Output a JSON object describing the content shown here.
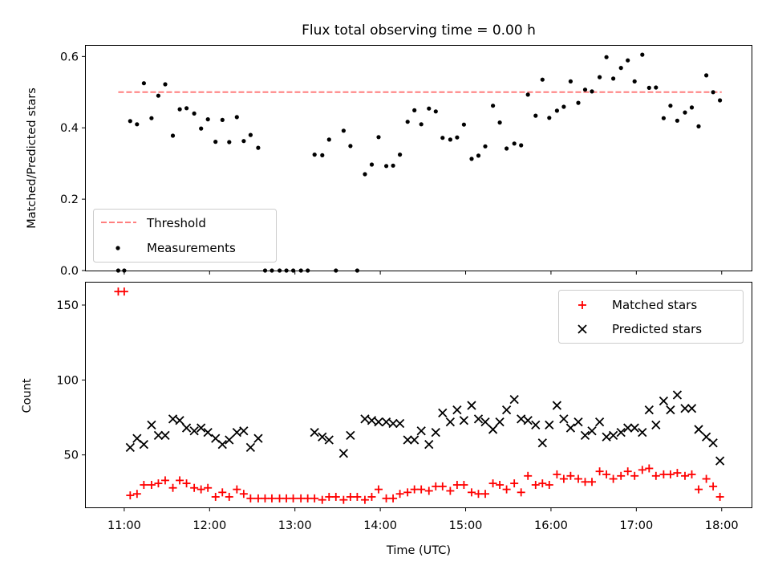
{
  "chart_data": [
    {
      "type": "scatter",
      "title": "Flux total observing time = 0.00 h",
      "xlabel": "",
      "ylabel": "Matched/Predicted stars",
      "xlim_hours": [
        10.55,
        18.35
      ],
      "ylim": [
        0,
        0.63
      ],
      "yticks": [
        0.0,
        0.2,
        0.4,
        0.6
      ],
      "ytick_labels": [
        "0.0",
        "0.2",
        "0.4",
        "0.6"
      ],
      "grid": false,
      "legend": {
        "position": "lower-left",
        "entries": [
          "Threshold",
          "Measurements"
        ]
      },
      "threshold": {
        "name": "Threshold",
        "value": 0.5,
        "x_range": [
          10.93,
          18.0
        ],
        "color": "#ff7f7f"
      },
      "series": [
        {
          "name": "Measurements",
          "marker": "dot",
          "color": "#000000",
          "points": [
            [
              10.93,
              0.0
            ],
            [
              11.0,
              0.0
            ],
            [
              11.07,
              0.419
            ],
            [
              11.15,
              0.41
            ],
            [
              11.23,
              0.525
            ],
            [
              11.32,
              0.427
            ],
            [
              11.4,
              0.49
            ],
            [
              11.48,
              0.522
            ],
            [
              11.57,
              0.378
            ],
            [
              11.65,
              0.452
            ],
            [
              11.73,
              0.455
            ],
            [
              11.82,
              0.44
            ],
            [
              11.9,
              0.398
            ],
            [
              11.98,
              0.424
            ],
            [
              12.07,
              0.361
            ],
            [
              12.15,
              0.422
            ],
            [
              12.23,
              0.36
            ],
            [
              12.32,
              0.43
            ],
            [
              12.4,
              0.363
            ],
            [
              12.48,
              0.38
            ],
            [
              12.57,
              0.344
            ],
            [
              12.65,
              0.0
            ],
            [
              12.73,
              0.0
            ],
            [
              12.82,
              0.0
            ],
            [
              12.9,
              0.0
            ],
            [
              12.98,
              0.0
            ],
            [
              13.07,
              0.0
            ],
            [
              13.15,
              0.0
            ],
            [
              13.23,
              0.325
            ],
            [
              13.32,
              0.323
            ],
            [
              13.4,
              0.367
            ],
            [
              13.48,
              0.0
            ],
            [
              13.57,
              0.392
            ],
            [
              13.65,
              0.349
            ],
            [
              13.73,
              0.0
            ],
            [
              13.82,
              0.27
            ],
            [
              13.9,
              0.297
            ],
            [
              13.98,
              0.374
            ],
            [
              14.07,
              0.293
            ],
            [
              14.15,
              0.294
            ],
            [
              14.23,
              0.325
            ],
            [
              14.32,
              0.417
            ],
            [
              14.4,
              0.449
            ],
            [
              14.48,
              0.41
            ],
            [
              14.57,
              0.454
            ],
            [
              14.65,
              0.446
            ],
            [
              14.73,
              0.372
            ],
            [
              14.82,
              0.367
            ],
            [
              14.9,
              0.373
            ],
            [
              14.98,
              0.409
            ],
            [
              15.07,
              0.313
            ],
            [
              15.15,
              0.322
            ],
            [
              15.23,
              0.348
            ],
            [
              15.32,
              0.462
            ],
            [
              15.4,
              0.415
            ],
            [
              15.48,
              0.342
            ],
            [
              15.57,
              0.356
            ],
            [
              15.65,
              0.351
            ],
            [
              15.73,
              0.493
            ],
            [
              15.82,
              0.434
            ],
            [
              15.9,
              0.535
            ],
            [
              15.98,
              0.428
            ],
            [
              16.07,
              0.448
            ],
            [
              16.15,
              0.459
            ],
            [
              16.23,
              0.53
            ],
            [
              16.32,
              0.47
            ],
            [
              16.4,
              0.507
            ],
            [
              16.48,
              0.502
            ],
            [
              16.57,
              0.542
            ],
            [
              16.65,
              0.598
            ],
            [
              16.73,
              0.538
            ],
            [
              16.82,
              0.568
            ],
            [
              16.9,
              0.589
            ],
            [
              16.98,
              0.53
            ],
            [
              17.07,
              0.605
            ],
            [
              17.15,
              0.512
            ],
            [
              17.23,
              0.513
            ],
            [
              17.32,
              0.427
            ],
            [
              17.4,
              0.462
            ],
            [
              17.48,
              0.42
            ],
            [
              17.57,
              0.443
            ],
            [
              17.65,
              0.457
            ],
            [
              17.73,
              0.404
            ],
            [
              17.82,
              0.547
            ],
            [
              17.9,
              0.5
            ],
            [
              17.98,
              0.477
            ]
          ]
        }
      ]
    },
    {
      "type": "scatter",
      "title": "",
      "xlabel": "Time (UTC)",
      "ylabel": "Count",
      "xlim_hours": [
        10.55,
        18.35
      ],
      "ylim": [
        15,
        165
      ],
      "xticks_hours": [
        11,
        12,
        13,
        14,
        15,
        16,
        17,
        18
      ],
      "xtick_labels": [
        "11:00",
        "12:00",
        "13:00",
        "14:00",
        "15:00",
        "16:00",
        "17:00",
        "18:00"
      ],
      "yticks": [
        50,
        100,
        150
      ],
      "ytick_labels": [
        "50",
        "100",
        "150"
      ],
      "grid": false,
      "legend": {
        "position": "top-right",
        "entries": [
          "Matched stars",
          "Predicted stars"
        ]
      },
      "series": [
        {
          "name": "Matched stars",
          "marker": "plus",
          "color": "#ff0000",
          "points": [
            [
              10.93,
              159
            ],
            [
              11.0,
              159
            ],
            [
              11.07,
              23
            ],
            [
              11.15,
              24
            ],
            [
              11.23,
              30
            ],
            [
              11.32,
              30
            ],
            [
              11.4,
              31
            ],
            [
              11.48,
              33
            ],
            [
              11.57,
              28
            ],
            [
              11.65,
              33
            ],
            [
              11.73,
              31
            ],
            [
              11.82,
              28
            ],
            [
              11.9,
              27
            ],
            [
              11.98,
              28
            ],
            [
              12.07,
              22
            ],
            [
              12.15,
              25
            ],
            [
              12.23,
              22
            ],
            [
              12.32,
              27
            ],
            [
              12.4,
              24
            ],
            [
              12.48,
              21
            ],
            [
              12.57,
              21
            ],
            [
              12.65,
              21
            ],
            [
              12.73,
              21
            ],
            [
              12.82,
              21
            ],
            [
              12.9,
              21
            ],
            [
              12.98,
              21
            ],
            [
              13.07,
              21
            ],
            [
              13.15,
              21
            ],
            [
              13.23,
              21
            ],
            [
              13.32,
              20
            ],
            [
              13.4,
              22
            ],
            [
              13.48,
              22
            ],
            [
              13.57,
              20
            ],
            [
              13.65,
              22
            ],
            [
              13.73,
              22
            ],
            [
              13.82,
              20
            ],
            [
              13.9,
              22
            ],
            [
              13.98,
              27
            ],
            [
              14.07,
              21
            ],
            [
              14.15,
              21
            ],
            [
              14.23,
              24
            ],
            [
              14.32,
              25
            ],
            [
              14.4,
              27
            ],
            [
              14.48,
              27
            ],
            [
              14.57,
              26
            ],
            [
              14.65,
              29
            ],
            [
              14.73,
              29
            ],
            [
              14.82,
              26
            ],
            [
              14.9,
              30
            ],
            [
              14.98,
              30
            ],
            [
              15.07,
              25
            ],
            [
              15.15,
              24
            ],
            [
              15.23,
              24
            ],
            [
              15.32,
              31
            ],
            [
              15.4,
              30
            ],
            [
              15.48,
              27
            ],
            [
              15.57,
              31
            ],
            [
              15.65,
              25
            ],
            [
              15.73,
              36
            ],
            [
              15.82,
              30
            ],
            [
              15.9,
              31
            ],
            [
              15.98,
              30
            ],
            [
              16.07,
              37
            ],
            [
              16.15,
              34
            ],
            [
              16.23,
              36
            ],
            [
              16.32,
              34
            ],
            [
              16.4,
              32
            ],
            [
              16.48,
              32
            ],
            [
              16.57,
              39
            ],
            [
              16.65,
              37
            ],
            [
              16.73,
              34
            ],
            [
              16.82,
              36
            ],
            [
              16.9,
              39
            ],
            [
              16.98,
              36
            ],
            [
              17.07,
              40
            ],
            [
              17.15,
              41
            ],
            [
              17.23,
              36
            ],
            [
              17.32,
              37
            ],
            [
              17.4,
              37
            ],
            [
              17.48,
              38
            ],
            [
              17.57,
              36
            ],
            [
              17.65,
              37
            ],
            [
              17.73,
              27
            ],
            [
              17.82,
              34
            ],
            [
              17.9,
              29
            ],
            [
              17.98,
              22
            ]
          ]
        },
        {
          "name": "Predicted stars",
          "marker": "x",
          "color": "#000000",
          "points": [
            [
              11.07,
              55
            ],
            [
              11.15,
              61
            ],
            [
              11.23,
              57
            ],
            [
              11.32,
              70
            ],
            [
              11.4,
              63
            ],
            [
              11.48,
              63
            ],
            [
              11.57,
              74
            ],
            [
              11.65,
              73
            ],
            [
              11.73,
              68
            ],
            [
              11.82,
              66
            ],
            [
              11.9,
              68
            ],
            [
              11.98,
              65
            ],
            [
              12.07,
              61
            ],
            [
              12.15,
              57
            ],
            [
              12.23,
              60
            ],
            [
              12.32,
              65
            ],
            [
              12.4,
              66
            ],
            [
              12.48,
              55
            ],
            [
              12.57,
              61
            ],
            [
              13.23,
              65
            ],
            [
              13.32,
              62
            ],
            [
              13.4,
              60
            ],
            [
              13.57,
              51
            ],
            [
              13.65,
              63
            ],
            [
              13.82,
              74
            ],
            [
              13.9,
              73
            ],
            [
              13.98,
              72
            ],
            [
              14.07,
              72
            ],
            [
              14.15,
              71
            ],
            [
              14.23,
              71
            ],
            [
              14.32,
              60
            ],
            [
              14.4,
              60
            ],
            [
              14.48,
              66
            ],
            [
              14.57,
              57
            ],
            [
              14.65,
              65
            ],
            [
              14.73,
              78
            ],
            [
              14.82,
              72
            ],
            [
              14.9,
              80
            ],
            [
              14.98,
              73
            ],
            [
              15.07,
              83
            ],
            [
              15.15,
              74
            ],
            [
              15.23,
              72
            ],
            [
              15.32,
              67
            ],
            [
              15.4,
              72
            ],
            [
              15.48,
              80
            ],
            [
              15.57,
              87
            ],
            [
              15.65,
              74
            ],
            [
              15.73,
              73
            ],
            [
              15.82,
              70
            ],
            [
              15.9,
              58
            ],
            [
              15.98,
              70
            ],
            [
              16.07,
              83
            ],
            [
              16.15,
              74
            ],
            [
              16.23,
              68
            ],
            [
              16.32,
              72
            ],
            [
              16.4,
              63
            ],
            [
              16.48,
              66
            ],
            [
              16.57,
              72
            ],
            [
              16.65,
              62
            ],
            [
              16.73,
              63
            ],
            [
              16.82,
              65
            ],
            [
              16.9,
              68
            ],
            [
              16.98,
              68
            ],
            [
              17.07,
              65
            ],
            [
              17.15,
              80
            ],
            [
              17.23,
              70
            ],
            [
              17.32,
              86
            ],
            [
              17.4,
              80
            ],
            [
              17.48,
              90
            ],
            [
              17.57,
              81
            ],
            [
              17.65,
              81
            ],
            [
              17.73,
              67
            ],
            [
              17.82,
              62
            ],
            [
              17.9,
              58
            ],
            [
              17.98,
              46
            ]
          ]
        }
      ]
    }
  ]
}
